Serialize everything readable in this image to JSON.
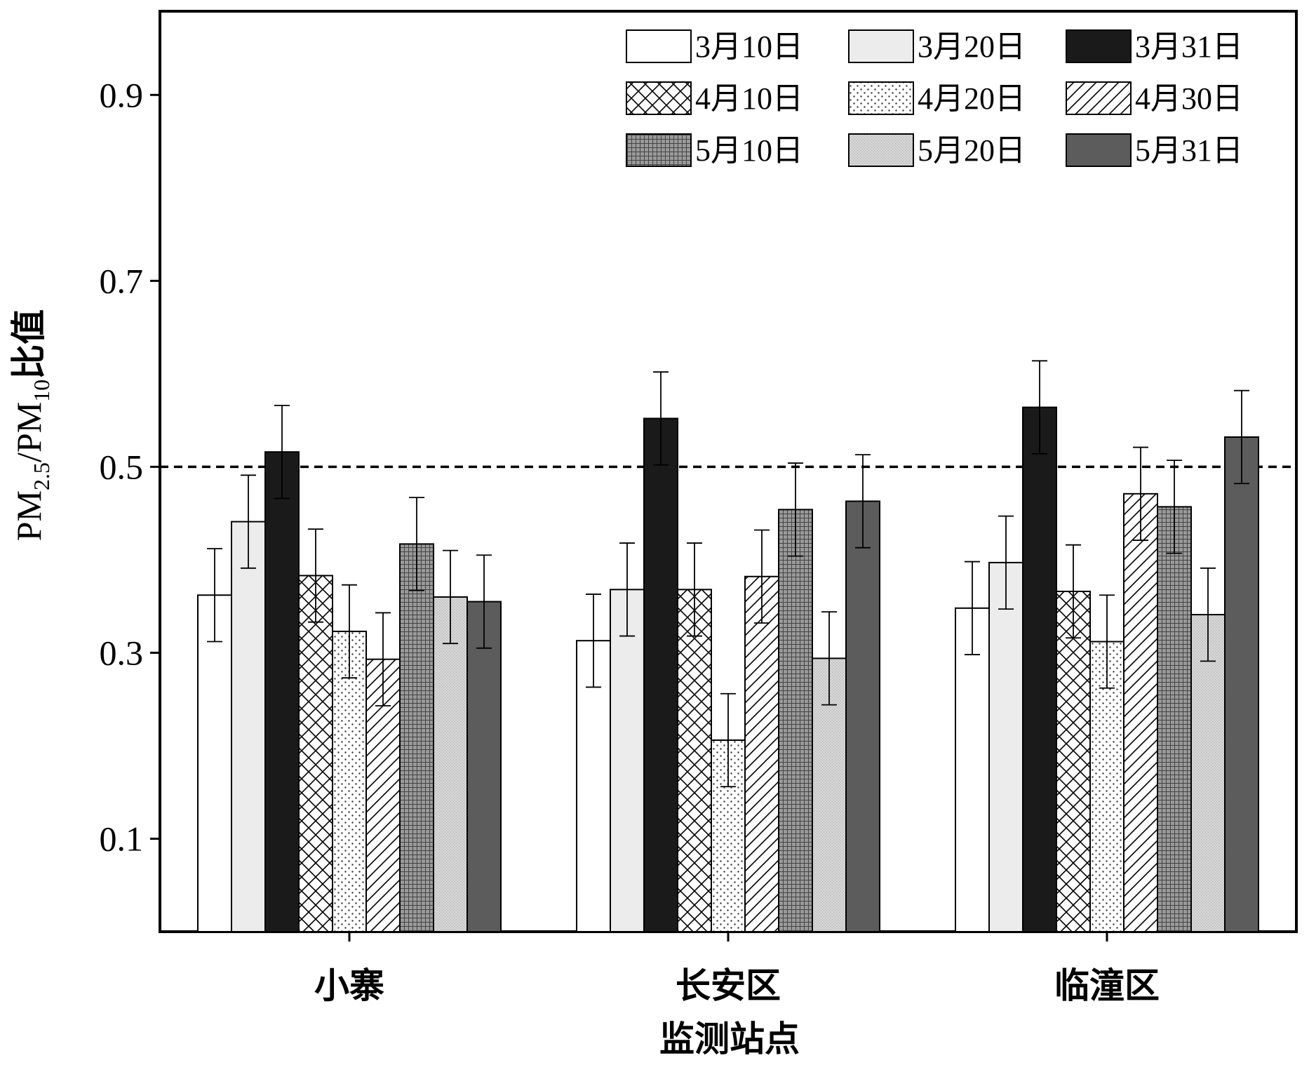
{
  "chart_data": {
    "type": "bar",
    "xlabel": "监测站点",
    "ylabel": {
      "parts": [
        "PM",
        "2.5",
        "/PM",
        "10",
        "比值"
      ]
    },
    "ylim": [
      0.0,
      0.99
    ],
    "yticks": [
      "0.1",
      "0.3",
      "0.5",
      "0.7",
      "0.9"
    ],
    "ytick_values": [
      0.1,
      0.3,
      0.5,
      0.7,
      0.9
    ],
    "reference_line": {
      "y": 0.5,
      "style": "dashed"
    },
    "categories": [
      "小寨",
      "长安区",
      "临潼区"
    ],
    "legend_position": "top-right",
    "series": [
      {
        "name": "3月10日",
        "pattern": "white",
        "values": [
          0.362,
          0.313,
          0.348
        ],
        "errors": [
          0.05,
          0.05,
          0.05
        ]
      },
      {
        "name": "3月20日",
        "pattern": "lightgray",
        "values": [
          0.441,
          0.368,
          0.397
        ],
        "errors": [
          0.05,
          0.05,
          0.05
        ]
      },
      {
        "name": "3月31日",
        "pattern": "black",
        "values": [
          0.516,
          0.552,
          0.564
        ],
        "errors": [
          0.05,
          0.05,
          0.05
        ]
      },
      {
        "name": "4月10日",
        "pattern": "crosshatch",
        "values": [
          0.383,
          0.368,
          0.366
        ],
        "errors": [
          0.05,
          0.05,
          0.05
        ]
      },
      {
        "name": "4月20日",
        "pattern": "dots",
        "values": [
          0.323,
          0.206,
          0.312
        ],
        "errors": [
          0.05,
          0.05,
          0.05
        ]
      },
      {
        "name": "4月30日",
        "pattern": "diagonal",
        "values": [
          0.293,
          0.382,
          0.471
        ],
        "errors": [
          0.05,
          0.05,
          0.05
        ]
      },
      {
        "name": "5月10日",
        "pattern": "grid",
        "values": [
          0.417,
          0.454,
          0.457
        ],
        "errors": [
          0.05,
          0.05,
          0.05
        ]
      },
      {
        "name": "5月20日",
        "pattern": "finedots",
        "values": [
          0.36,
          0.294,
          0.341
        ],
        "errors": [
          0.05,
          0.05,
          0.05
        ]
      },
      {
        "name": "5月31日",
        "pattern": "darkgray",
        "values": [
          0.355,
          0.463,
          0.532
        ],
        "errors": [
          0.05,
          0.05,
          0.05
        ]
      }
    ]
  }
}
